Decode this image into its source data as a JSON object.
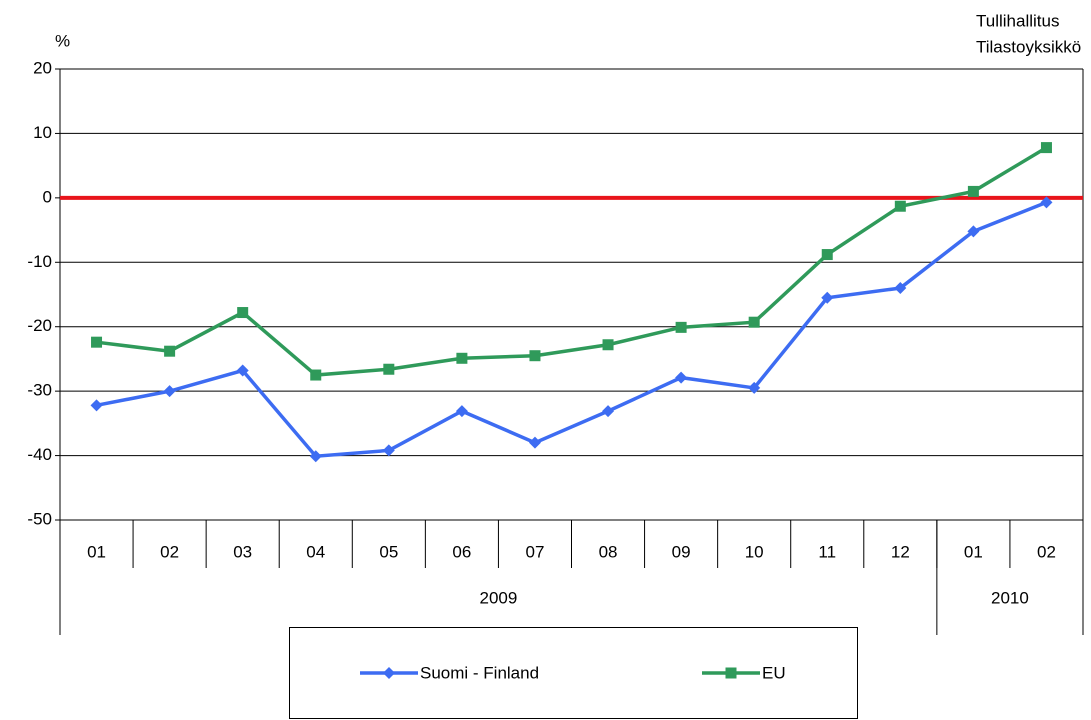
{
  "chart_data": {
    "type": "line",
    "y_label": "%",
    "source": [
      "Tullihallitus",
      "Tilastoyksikkö"
    ],
    "categories": [
      "01",
      "02",
      "03",
      "04",
      "05",
      "06",
      "07",
      "08",
      "09",
      "10",
      "11",
      "12",
      "01",
      "02"
    ],
    "groups": [
      {
        "label": "2009",
        "span": 12
      },
      {
        "label": "2010",
        "span": 2
      }
    ],
    "series": [
      {
        "name": "Suomi - Finland",
        "color": "#3d6cf2",
        "marker": "diamond",
        "values": [
          -32.2,
          -30,
          -26.8,
          -40.1,
          -39.2,
          -33.1,
          -38,
          -33.1,
          -27.9,
          -29.5,
          -15.5,
          -14,
          -5.2,
          -0.7
        ]
      },
      {
        "name": "EU",
        "color": "#2f9a5a",
        "marker": "square",
        "values": [
          -22.4,
          -23.8,
          -17.8,
          -27.5,
          -26.6,
          -24.9,
          -24.5,
          -22.8,
          -20.1,
          -19.3,
          -8.8,
          -1.3,
          1.0,
          7.8
        ]
      }
    ],
    "ylim": [
      -50,
      20
    ],
    "yticks": [
      -50,
      -40,
      -30,
      -20,
      -10,
      0,
      10,
      20
    ],
    "grid": true,
    "zero_line_color": "#e8141b",
    "legend": "bottom"
  }
}
